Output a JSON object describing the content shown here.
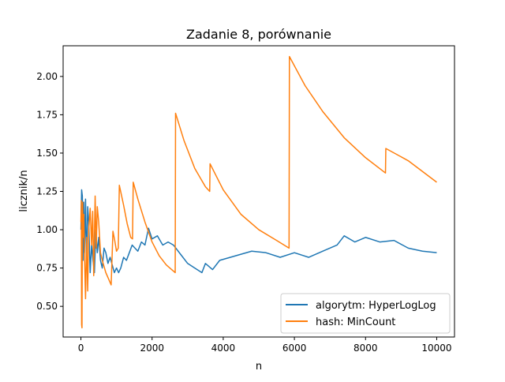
{
  "chart_data": {
    "type": "line",
    "title": "Zadanie 8, porównanie",
    "xlabel": "n",
    "ylabel": "licznik/n",
    "xlim": [
      -500,
      10500
    ],
    "ylim": [
      0.3,
      2.2
    ],
    "xticks": [
      0,
      2000,
      4000,
      6000,
      8000,
      10000
    ],
    "xtick_labels": [
      "0",
      "2000",
      "4000",
      "6000",
      "8000",
      "10000"
    ],
    "yticks": [
      0.5,
      0.75,
      1.0,
      1.25,
      1.5,
      1.75,
      2.0
    ],
    "ytick_labels": [
      "0.50",
      "0.75",
      "1.00",
      "1.25",
      "1.50",
      "1.75",
      "2.00"
    ],
    "grid": false,
    "legend_position": "lower-right",
    "series": [
      {
        "name": "algorytm: HyperLogLog",
        "color": "#1f77b4",
        "x": [
          1,
          20,
          40,
          60,
          80,
          100,
          130,
          160,
          190,
          220,
          260,
          300,
          340,
          380,
          420,
          460,
          500,
          550,
          600,
          650,
          700,
          760,
          820,
          880,
          940,
          1000,
          1060,
          1120,
          1200,
          1280,
          1360,
          1440,
          1520,
          1600,
          1700,
          1800,
          1900,
          2000,
          2150,
          2300,
          2450,
          2600,
          2800,
          3000,
          3200,
          3400,
          3500,
          3700,
          3900,
          4200,
          4500,
          4800,
          5200,
          5600,
          6000,
          6400,
          6800,
          7200,
          7400,
          7700,
          8000,
          8400,
          8800,
          9200,
          9600,
          10000
        ],
        "y": [
          1.0,
          1.26,
          1.22,
          0.8,
          1.18,
          0.85,
          1.2,
          0.75,
          1.15,
          1.05,
          0.72,
          0.9,
          0.8,
          0.72,
          1.0,
          0.85,
          0.95,
          0.8,
          0.75,
          0.88,
          0.85,
          0.78,
          0.82,
          0.77,
          0.72,
          0.75,
          0.72,
          0.75,
          0.82,
          0.8,
          0.85,
          0.9,
          0.88,
          0.86,
          0.92,
          0.9,
          1.01,
          0.94,
          0.96,
          0.9,
          0.92,
          0.9,
          0.84,
          0.78,
          0.75,
          0.72,
          0.78,
          0.74,
          0.8,
          0.82,
          0.84,
          0.86,
          0.85,
          0.82,
          0.85,
          0.82,
          0.86,
          0.9,
          0.96,
          0.92,
          0.95,
          0.92,
          0.93,
          0.88,
          0.86,
          0.85
        ]
      },
      {
        "name": "hash: MinCount",
        "color": "#ff7f0e",
        "x": [
          1,
          10,
          20,
          30,
          40,
          50,
          60,
          80,
          100,
          130,
          160,
          190,
          220,
          260,
          300,
          330,
          360,
          400,
          430,
          460,
          500,
          550,
          600,
          700,
          850,
          900,
          950,
          1000,
          1050,
          1080,
          1200,
          1300,
          1400,
          1450,
          1470,
          1600,
          1800,
          2000,
          2200,
          2400,
          2650,
          2660,
          2900,
          3200,
          3500,
          3620,
          3630,
          4000,
          4500,
          5000,
          5500,
          5850,
          5860,
          6300,
          6800,
          7400,
          8000,
          8560,
          8570,
          9200,
          10000
        ],
        "y": [
          1.05,
          1.19,
          0.38,
          0.36,
          1.0,
          1.18,
          0.95,
          1.1,
          0.85,
          0.55,
          0.95,
          0.6,
          1.0,
          1.14,
          0.9,
          1.12,
          0.7,
          1.22,
          0.88,
          1.15,
          1.05,
          0.85,
          0.8,
          0.72,
          0.64,
          0.99,
          0.93,
          0.86,
          0.88,
          1.29,
          1.16,
          1.04,
          0.95,
          0.94,
          1.31,
          1.2,
          1.05,
          0.92,
          0.83,
          0.77,
          0.72,
          1.76,
          1.58,
          1.4,
          1.28,
          1.25,
          1.43,
          1.26,
          1.1,
          1.0,
          0.93,
          0.88,
          2.13,
          1.94,
          1.77,
          1.6,
          1.47,
          1.37,
          1.53,
          1.45,
          1.31
        ]
      }
    ]
  }
}
